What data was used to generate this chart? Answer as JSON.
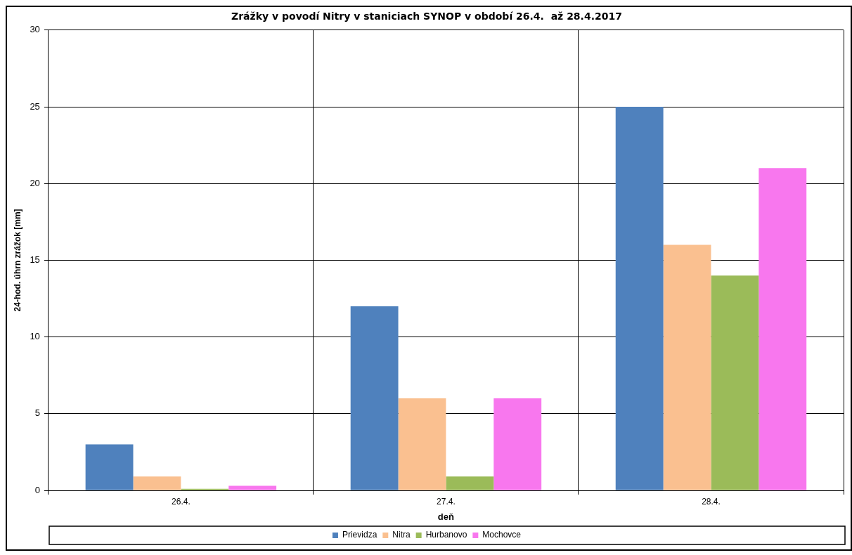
{
  "chart_data": {
    "type": "bar",
    "title": "Zrážky v povodí Nitry v staniciach SYNOP v období 26.4.  až 28.4.2017",
    "xlabel": "deň",
    "ylabel": "24-hod. úhrn zrážok [mm]",
    "categories": [
      "26.4.",
      "27.4.",
      "28.4."
    ],
    "series": [
      {
        "name": "Prievidza",
        "color": "#4f81bd",
        "values": [
          3,
          12,
          25
        ]
      },
      {
        "name": "Nitra",
        "color": "#fac090",
        "values": [
          0.9,
          6,
          16
        ]
      },
      {
        "name": "Hurbanovo",
        "color": "#9bbb59",
        "values": [
          0.1,
          0.9,
          14
        ]
      },
      {
        "name": "Mochovce",
        "color": "#f877ee",
        "values": [
          0.3,
          6,
          21
        ]
      }
    ],
    "ylim": [
      0,
      30
    ],
    "yticks": [
      0,
      5,
      10,
      15,
      20,
      25,
      30
    ],
    "grid": true,
    "legend": "bottom"
  }
}
